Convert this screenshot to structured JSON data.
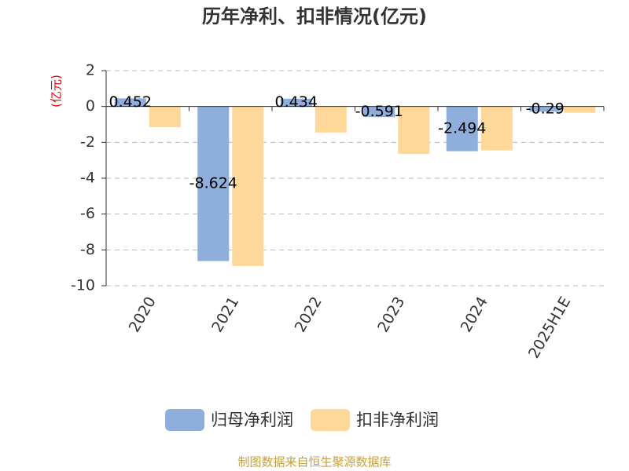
{
  "chart_data": {
    "type": "bar",
    "title": "历年净利、扣非情况(亿元)",
    "y_label": "(亿元)",
    "categories": [
      "2020",
      "2021",
      "2022",
      "2023",
      "2024",
      "2025H1E"
    ],
    "series": [
      {
        "name": "归母净利润",
        "color": "#8eaedb",
        "values": [
          0.452,
          -8.624,
          0.434,
          -0.591,
          -2.494,
          -0.29
        ],
        "show_labels": true
      },
      {
        "name": "扣非净利润",
        "color": "#fdd898",
        "values": [
          -1.15,
          -8.9,
          -1.45,
          -2.65,
          -2.45,
          -0.35
        ],
        "show_labels": false
      }
    ],
    "ylim": [
      -10,
      2
    ],
    "yticks": [
      -10,
      -8,
      -6,
      -4,
      -2,
      0,
      2
    ],
    "grid": true,
    "source": "制图数据来自恒生聚源数据库"
  }
}
